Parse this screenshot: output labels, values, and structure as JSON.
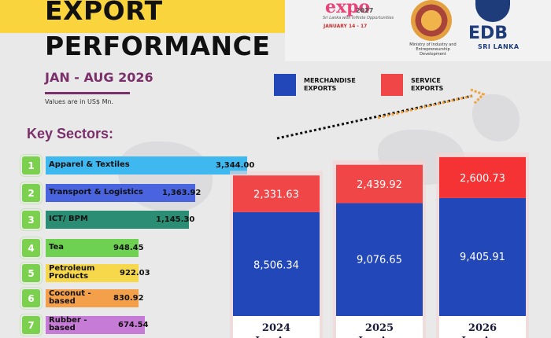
{
  "header": {
    "title_line1": "EXPORT",
    "title_line2": "PERFORMANCE",
    "period": "JAN - AUG 2026",
    "units_note": "Values are in US$ Mn."
  },
  "logos": {
    "expo": {
      "name": "expo",
      "year": "2027",
      "tagline": "Sri Lanka with Infinite Opportunities",
      "dates": "JANUARY 14 - 17"
    },
    "ministry": "Ministry of Industry and Entrepreneurship Development",
    "edb": {
      "name": "EDB",
      "sub": "SRI LANKA"
    }
  },
  "key_sectors": {
    "heading": "Key Sectors:",
    "items": [
      {
        "rank": "1",
        "label": "Apparel & Textiles",
        "value": "3,344.00",
        "color": "#3fb8f0"
      },
      {
        "rank": "2",
        "label": "Transport & Logistics",
        "value": "1,363.92",
        "color": "#4a64df"
      },
      {
        "rank": "3",
        "label": "ICT/ BPM",
        "value": "1,145.30",
        "color": "#2b8d73"
      },
      {
        "rank": "4",
        "label": "Tea",
        "value": "948.45",
        "color": "#6fd152"
      },
      {
        "rank": "5",
        "label": "Petroleum Products",
        "value": "922.03",
        "color": "#f7d84a"
      },
      {
        "rank": "6",
        "label": "Coconut - based",
        "value": "830.92",
        "color": "#f4a04a"
      },
      {
        "rank": "7",
        "label": "Rubber - based",
        "value": "674.54",
        "color": "#c67cd6"
      }
    ]
  },
  "colors": {
    "merchandise": "#2247b9",
    "service": "#f04648",
    "service_2026": "#f53335",
    "accent": "#7a2f6b"
  },
  "chart_data": {
    "type": "bar",
    "stacked": true,
    "categories": [
      "2024",
      "2025",
      "2026"
    ],
    "category_sublabel": "Jan-Aug",
    "series": [
      {
        "name": "MERCHANDISE EXPORTS",
        "values": [
          8506.34,
          9076.65,
          9405.91
        ]
      },
      {
        "name": "SERVICE EXPORTS",
        "values": [
          2331.63,
          2439.92,
          2600.73
        ]
      }
    ],
    "value_labels": {
      "merchandise": [
        "8,506.34",
        "9,076.65",
        "9,405.91"
      ],
      "service": [
        "2,331.63",
        "2,439.92",
        "2,600.73"
      ]
    },
    "legend": [
      "MERCHANDISE EXPORTS",
      "SERVICE EXPORTS"
    ],
    "legend_position": "top",
    "trend_arrow": true,
    "title": "",
    "xlabel": "",
    "ylabel": ""
  }
}
